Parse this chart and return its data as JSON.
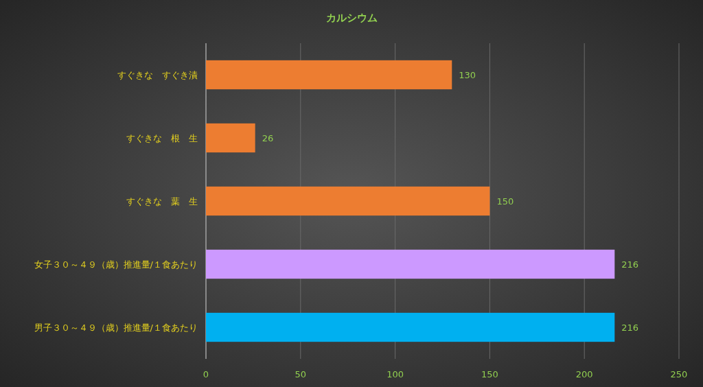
{
  "chart_data": {
    "type": "bar",
    "orientation": "horizontal",
    "title": "カルシウム",
    "categories": [
      "すぐきな　すぐき漬",
      "すぐきな　根　生",
      "すぐきな　葉　生",
      "女子３０～４９（歳）推進量/１食あたり",
      "男子３０～４９（歳）推進量/１食あたり"
    ],
    "values": [
      130,
      26,
      150,
      216,
      216
    ],
    "colors": [
      "#ed7d31",
      "#ed7d31",
      "#ed7d31",
      "#cc99ff",
      "#00b0f0"
    ],
    "xlim": [
      0,
      250
    ],
    "xticks": [
      0,
      50,
      100,
      150,
      200,
      250
    ],
    "grid": "x",
    "data_labels": true
  }
}
